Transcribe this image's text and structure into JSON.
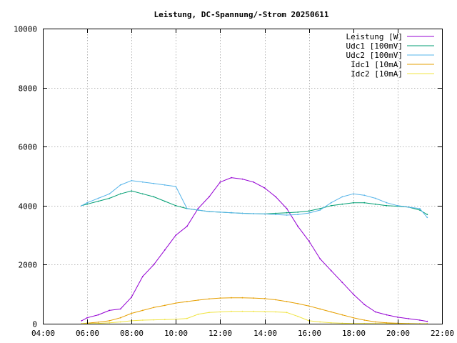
{
  "chart_data": {
    "type": "line",
    "title": "Leistung, DC-Spannung/-Strom 20250611",
    "xlabel": "",
    "ylabel": "",
    "xlim": [
      "04:00",
      "22:00"
    ],
    "ylim": [
      0,
      10000
    ],
    "x_ticks": [
      "04:00",
      "06:00",
      "08:00",
      "10:00",
      "12:00",
      "14:00",
      "16:00",
      "18:00",
      "20:00",
      "22:00"
    ],
    "y_ticks": [
      "0",
      "2000",
      "4000",
      "6000",
      "8000",
      "10000"
    ],
    "grid": true,
    "legend_position": "top-right",
    "x": [
      "05:45",
      "06:00",
      "06:30",
      "07:00",
      "07:30",
      "08:00",
      "08:30",
      "09:00",
      "09:30",
      "10:00",
      "10:30",
      "11:00",
      "11:30",
      "12:00",
      "12:30",
      "13:00",
      "13:30",
      "14:00",
      "14:30",
      "15:00",
      "15:30",
      "16:00",
      "16:30",
      "17:00",
      "17:30",
      "18:00",
      "18:30",
      "19:00",
      "19:30",
      "20:00",
      "20:30",
      "21:00",
      "21:20"
    ],
    "series": [
      {
        "name": "Leistung [W]",
        "color": "#9400d3",
        "values": [
          100,
          200,
          300,
          450,
          500,
          900,
          1600,
          2000,
          2500,
          3000,
          3300,
          3900,
          4300,
          4800,
          4950,
          4900,
          4800,
          4600,
          4300,
          3900,
          3300,
          2800,
          2200,
          1800,
          1400,
          1000,
          650,
          400,
          300,
          220,
          170,
          120,
          80
        ]
      },
      {
        "name": "Udc1 [100mV]",
        "color": "#009e73",
        "values": [
          4000,
          4050,
          4150,
          4250,
          4400,
          4500,
          4400,
          4300,
          4150,
          4000,
          3900,
          3850,
          3800,
          3780,
          3760,
          3740,
          3730,
          3720,
          3740,
          3760,
          3780,
          3820,
          3900,
          4000,
          4050,
          4100,
          4100,
          4050,
          4000,
          3980,
          3950,
          3850,
          3700
        ]
      },
      {
        "name": "Udc2 [100mV]",
        "color": "#56b4e9",
        "values": [
          4000,
          4100,
          4250,
          4400,
          4700,
          4850,
          4800,
          4750,
          4700,
          4650,
          3900,
          3850,
          3800,
          3780,
          3760,
          3740,
          3730,
          3720,
          3700,
          3680,
          3700,
          3750,
          3850,
          4100,
          4300,
          4400,
          4350,
          4250,
          4100,
          4000,
          3950,
          3900,
          3600
        ]
      },
      {
        "name": "Idc1 [10mA]",
        "color": "#e69f00",
        "values": [
          0,
          20,
          50,
          100,
          200,
          350,
          450,
          550,
          620,
          700,
          750,
          800,
          840,
          870,
          880,
          880,
          870,
          850,
          810,
          750,
          680,
          600,
          500,
          400,
          300,
          200,
          120,
          60,
          30,
          15,
          5,
          0,
          0
        ]
      },
      {
        "name": "Idc2 [10mA]",
        "color": "#f0e442",
        "values": [
          0,
          5,
          10,
          30,
          60,
          100,
          120,
          130,
          140,
          150,
          180,
          320,
          380,
          400,
          420,
          420,
          420,
          410,
          400,
          380,
          250,
          100,
          60,
          30,
          15,
          8,
          4,
          2,
          0,
          0,
          0,
          0,
          0
        ]
      }
    ]
  }
}
